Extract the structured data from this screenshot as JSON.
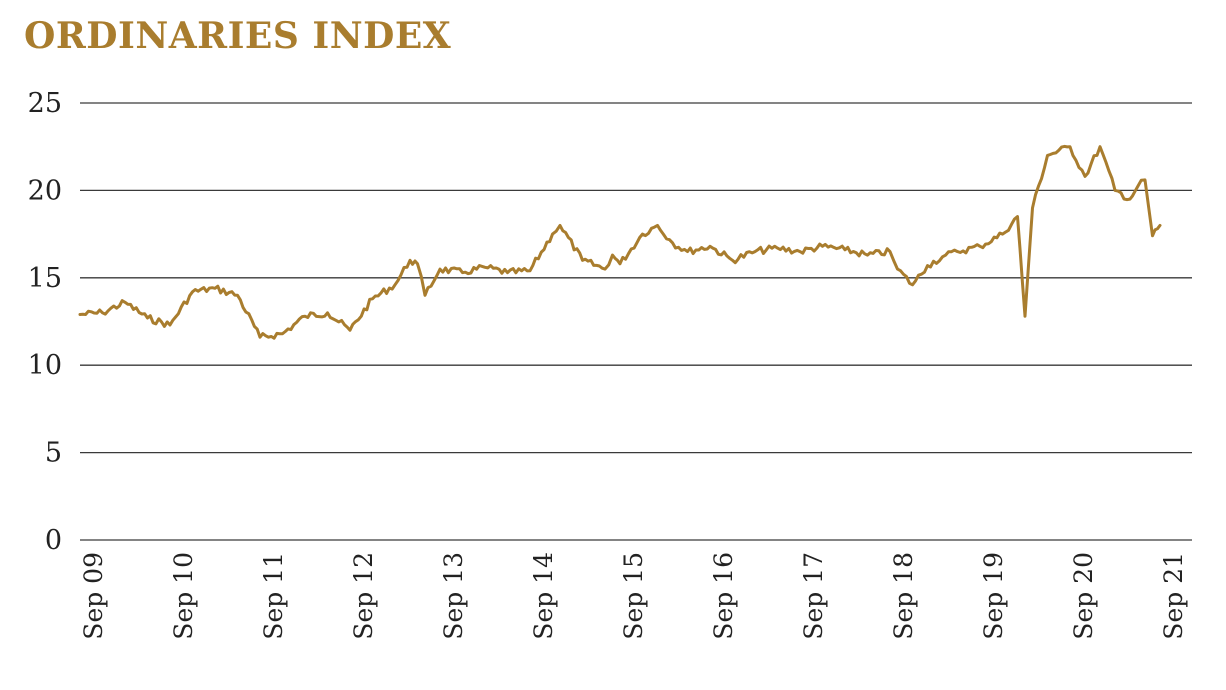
{
  "chart_data": {
    "type": "line",
    "title": "ORDINARIES INDEX",
    "xlabel": "",
    "ylabel": "",
    "ylim": [
      0,
      25
    ],
    "yticks": [
      0,
      5,
      10,
      15,
      20,
      25
    ],
    "xticks": [
      "Sep 09",
      "Sep 10",
      "Sep 11",
      "Sep 12",
      "Sep 13",
      "Sep 14",
      "Sep 15",
      "Sep 16",
      "Sep 17",
      "Sep 18",
      "Sep 19",
      "Sep 20",
      "Sep 21"
    ],
    "grid": true,
    "legend": "none",
    "series": [
      {
        "color": "#A97D2E",
        "x": [
          "2009-09",
          "2009-12",
          "2010-03",
          "2010-06",
          "2010-09",
          "2010-12",
          "2011-03",
          "2011-06",
          "2011-09",
          "2011-12",
          "2012-03",
          "2012-06",
          "2012-09",
          "2012-12",
          "2013-03",
          "2013-05",
          "2013-06",
          "2013-07",
          "2013-09",
          "2013-12",
          "2014-03",
          "2014-06",
          "2014-09",
          "2014-12",
          "2015-01",
          "2015-04",
          "2015-07",
          "2015-08",
          "2015-09",
          "2015-12",
          "2016-02",
          "2016-04",
          "2016-06",
          "2016-09",
          "2016-12",
          "2017-03",
          "2017-06",
          "2017-09",
          "2017-12",
          "2018-03",
          "2018-06",
          "2018-09",
          "2018-10",
          "2018-12",
          "2019-02",
          "2019-04",
          "2019-06",
          "2019-09",
          "2019-12",
          "2020-02",
          "2020-03",
          "2020-04",
          "2020-06",
          "2020-09",
          "2020-11",
          "2021-01",
          "2021-03",
          "2021-05",
          "2021-06",
          "2021-07",
          "2021-08",
          "2021-09"
        ],
        "values": [
          12.9,
          13.0,
          13.6,
          12.7,
          12.3,
          14.2,
          14.4,
          14.0,
          11.6,
          11.8,
          12.8,
          13.0,
          12.0,
          13.8,
          14.6,
          16.0,
          15.8,
          14.0,
          15.5,
          15.3,
          15.6,
          15.3,
          15.4,
          17.5,
          18.0,
          16.0,
          15.5,
          16.3,
          15.8,
          17.5,
          18.0,
          17.0,
          16.5,
          16.8,
          16.0,
          16.5,
          16.7,
          16.5,
          16.8,
          16.6,
          16.3,
          16.5,
          15.5,
          14.6,
          15.7,
          16.2,
          16.5,
          16.8,
          17.5,
          18.5,
          12.8,
          19.0,
          22.0,
          22.5,
          20.8,
          22.5,
          20.0,
          19.5,
          20.2,
          20.6,
          17.4,
          18.0
        ]
      }
    ]
  }
}
